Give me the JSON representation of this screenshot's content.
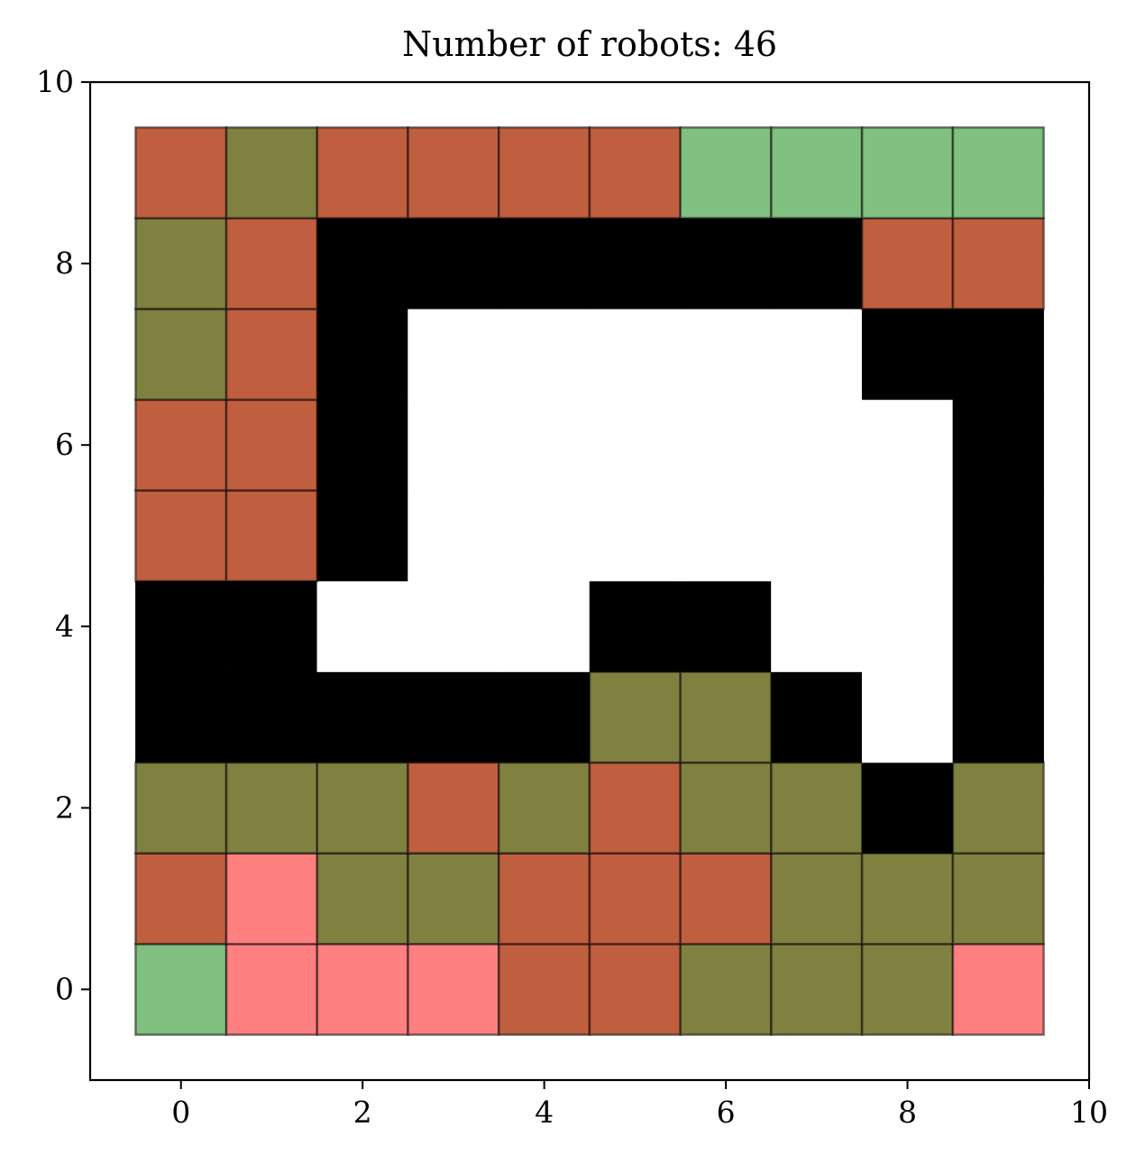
{
  "chart_data": {
    "type": "heatmap",
    "title": "Number of robots: 46",
    "xlabel": "",
    "ylabel": "",
    "xlim": [
      -1,
      10
    ],
    "ylim": [
      -1,
      10
    ],
    "xticks": [
      0,
      2,
      4,
      6,
      8,
      10
    ],
    "yticks": [
      0,
      2,
      4,
      6,
      8,
      10
    ],
    "grid": false,
    "cell_colors": {
      "B": "#000000",
      "W": "#ffffff",
      "R": "#c05e40",
      "O": "#808040",
      "G": "#80c080",
      "P": "#ff8080"
    },
    "rows_bottom_to_top": [
      [
        "G",
        "P",
        "P",
        "P",
        "R",
        "R",
        "O",
        "O",
        "O",
        "P"
      ],
      [
        "R",
        "P",
        "O",
        "O",
        "R",
        "R",
        "R",
        "O",
        "O",
        "O"
      ],
      [
        "O",
        "O",
        "O",
        "R",
        "O",
        "R",
        "O",
        "O",
        "B",
        "O"
      ],
      [
        "B",
        "B",
        "B",
        "B",
        "B",
        "O",
        "O",
        "B",
        "W",
        "B"
      ],
      [
        "B",
        "B",
        "W",
        "W",
        "W",
        "B",
        "B",
        "W",
        "W",
        "B"
      ],
      [
        "R",
        "R",
        "B",
        "W",
        "W",
        "W",
        "W",
        "W",
        "W",
        "B"
      ],
      [
        "R",
        "R",
        "B",
        "W",
        "W",
        "W",
        "W",
        "W",
        "W",
        "B"
      ],
      [
        "O",
        "R",
        "B",
        "W",
        "W",
        "W",
        "W",
        "W",
        "B",
        "B"
      ],
      [
        "O",
        "R",
        "B",
        "B",
        "B",
        "B",
        "B",
        "B",
        "R",
        "R"
      ],
      [
        "R",
        "O",
        "R",
        "R",
        "R",
        "R",
        "G",
        "G",
        "G",
        "G"
      ]
    ]
  }
}
